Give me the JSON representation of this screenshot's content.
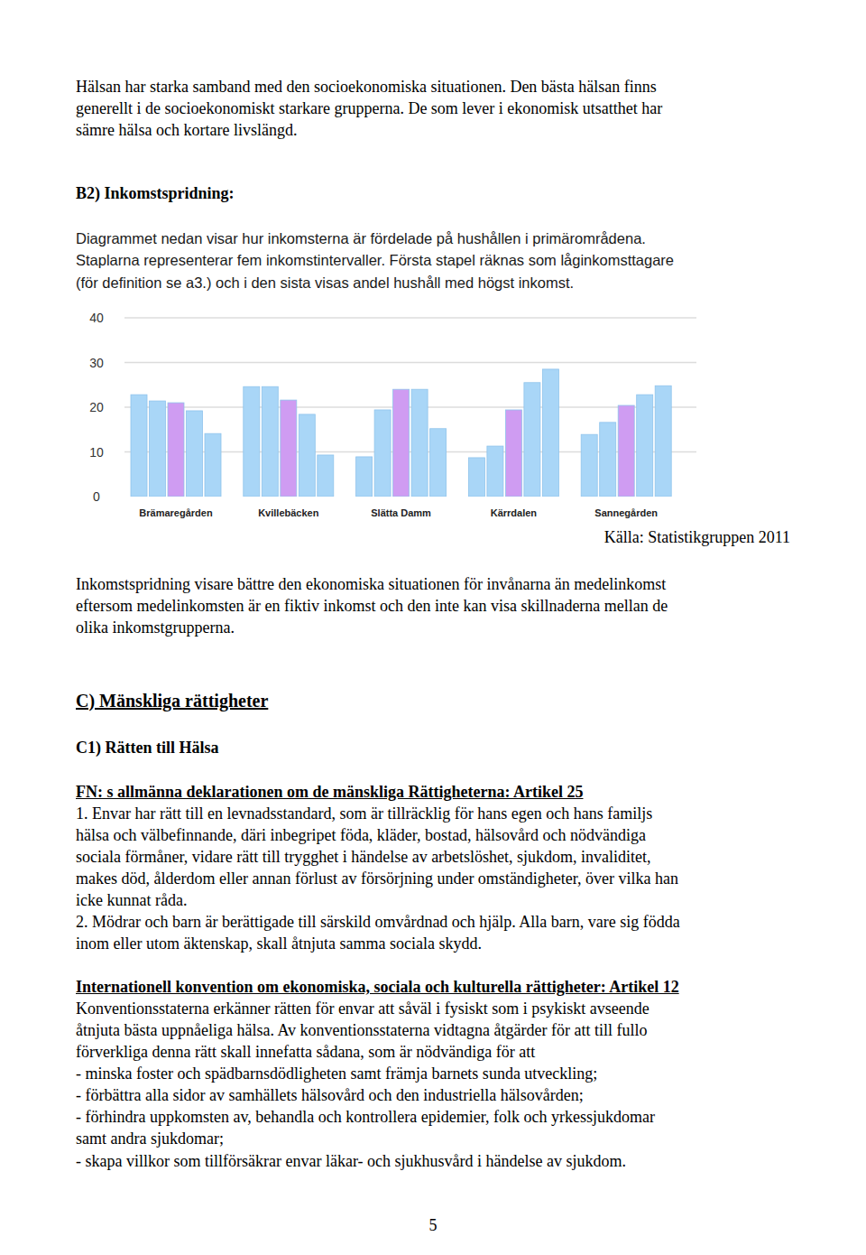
{
  "document": {
    "intro": [
      "Hälsan har starka samband med den socioekonomiska situationen. Den bästa hälsan finns",
      "generellt i de socioekonomiskt starkare grupperna. De som lever i ekonomisk utsatthet har",
      "sämre hälsa och kortare livslängd."
    ],
    "b2_heading": "B2) Inkomstspridning:",
    "b2_text": [
      "Diagrammet nedan visar hur inkomsterna är fördelade på hushållen i primärområdena.",
      "Staplarna representerar fem inkomstintervaller. Första stapel räknas som låginkomsttagare",
      "(för definition se a3.) och i den sista visas andel hushåll med högst inkomst."
    ],
    "source": "Källa: Statistikgruppen 2011",
    "b2_note": [
      "Inkomstspridning visare bättre den ekonomiska situationen för invånarna än medelinkomst",
      "eftersom medelinkomsten är en fiktiv inkomst och den inte kan visa skillnaderna mellan de",
      "olika inkomstgrupperna."
    ],
    "c_heading": "C) Mänskliga rättigheter",
    "c1_heading": "C1) Rätten till Hälsa",
    "art25_heading": "FN: s allmänna deklarationen om de mänskliga Rättigheterna: Artikel 25",
    "art25_text": [
      "1. Envar har rätt till en levnadsstandard, som är tillräcklig för hans egen och hans familjs",
      "hälsa och välbefinnande, däri inbegripet föda, kläder, bostad, hälsovård och nödvändiga",
      "sociala förmåner, vidare rätt till trygghet i händelse av arbetslöshet, sjukdom, invaliditet,",
      "makes död, ålderdom eller annan förlust av försörjning under omständigheter, över vilka han",
      "icke kunnat råda.",
      "2. Mödrar och barn är berättigade till särskild omvårdnad och hjälp. Alla barn, vare sig födda",
      "inom eller utom äktenskap, skall åtnjuta samma sociala skydd."
    ],
    "icescr_heading": "Internationell konvention om ekonomiska, sociala och kulturella rättigheter: Artikel 12",
    "icescr_text": [
      "Konventionsstaterna erkänner rätten för envar att såväl i fysiskt som i psykiskt avseende",
      "åtnjuta bästa uppnåeliga hälsa. Av konventionsstaterna vidtagna åtgärder för att till fullo",
      "förverkliga denna rätt skall innefatta sådana, som är nödvändiga för att",
      "- minska foster och spädbarnsdödligheten samt främja barnets sunda utveckling;",
      "- förbättra alla sidor av samhällets hälsovård och den industriella hälsovården;",
      "- förhindra uppkomsten av, behandla och kontrollera epidemier, folk och yrkessjukdomar",
      "samt andra sjukdomar;",
      "- skapa villkor som tillförsäkrar envar läkar- och sjukhusvård i händelse av sjukdom."
    ],
    "page_number": "5"
  },
  "chart_data": {
    "type": "bar",
    "categories": [
      "Brämaregården",
      "Kvillebäcken",
      "Slätta Damm",
      "Kärrdalen",
      "Sannegården"
    ],
    "series": [
      {
        "color": "#a9d6f7",
        "values": [
          22.8,
          24.6,
          8.9,
          8.7,
          13.9
        ]
      },
      {
        "color": "#a9d6f7",
        "values": [
          21.4,
          24.6,
          19.4,
          11.3,
          16.6
        ]
      },
      {
        "color": "#cf9cf2",
        "values": [
          21.0,
          21.6,
          24.0,
          19.4,
          20.4
        ]
      },
      {
        "color": "#a9d6f7",
        "values": [
          19.2,
          18.4,
          24.0,
          25.5,
          22.8
        ]
      },
      {
        "color": "#a9d6f7",
        "values": [
          14.1,
          9.3,
          15.2,
          28.5,
          24.8
        ]
      }
    ],
    "ylim": [
      0,
      40
    ],
    "yticks": [
      0,
      10,
      20,
      30,
      40
    ],
    "grid": true
  }
}
